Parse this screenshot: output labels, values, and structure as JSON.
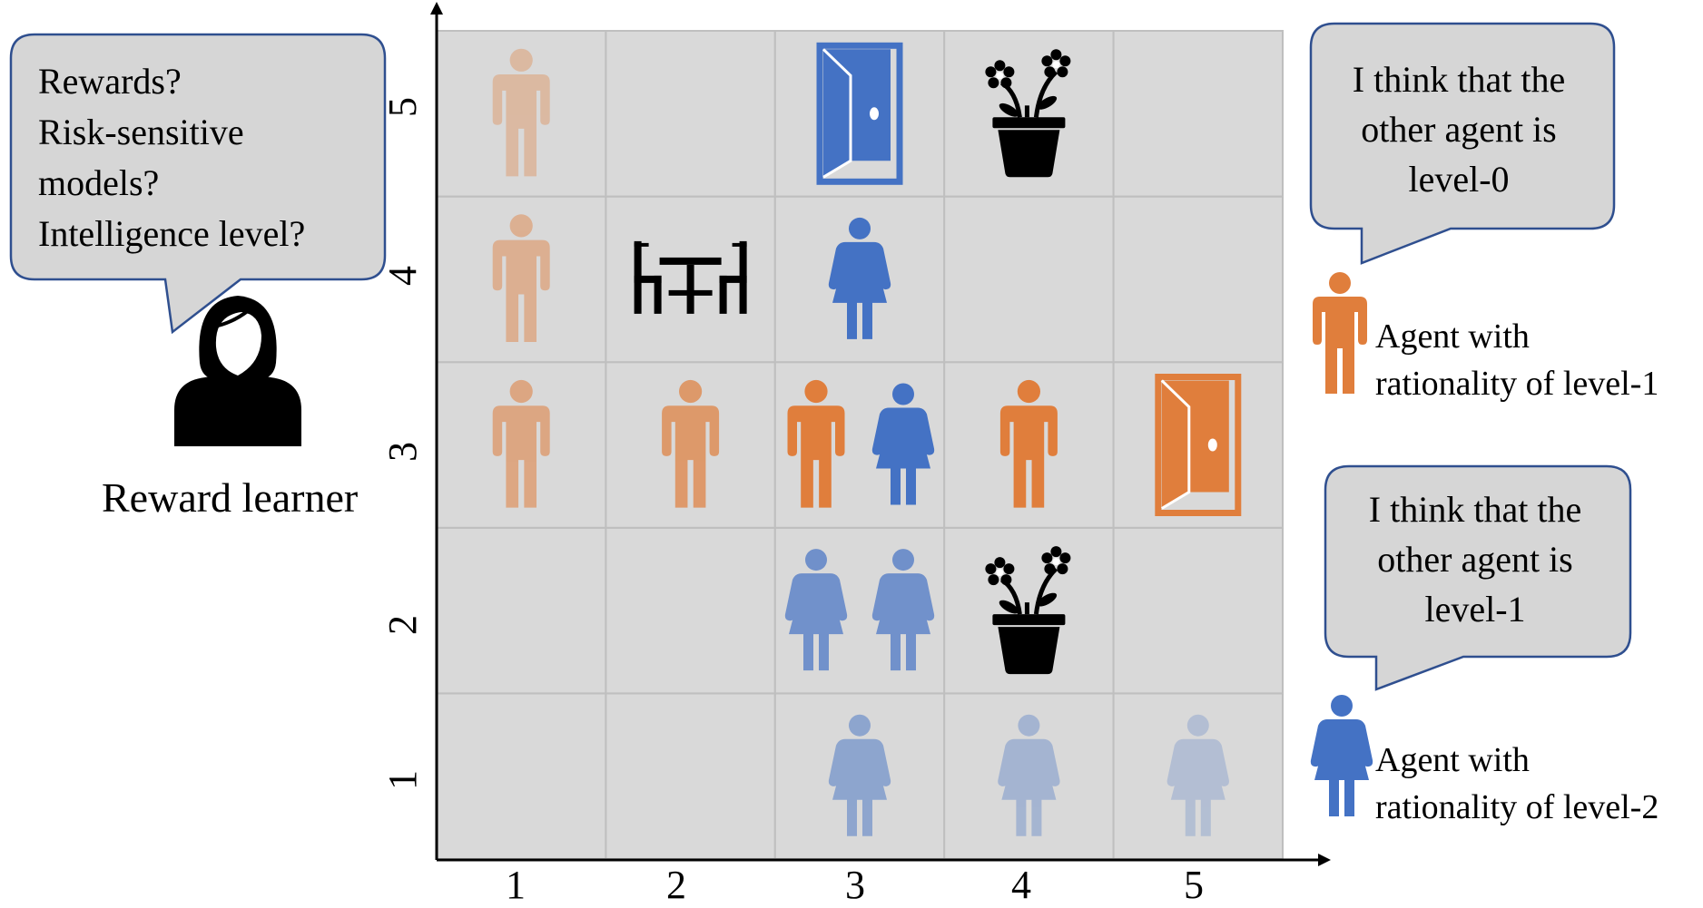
{
  "learner": {
    "question_lines": [
      "Rewards?",
      "Risk-sensitive",
      "models?",
      "Intelligence level?"
    ],
    "label": "Reward learner"
  },
  "level1_agent": {
    "thought_lines": [
      "I think that the",
      "other agent is",
      "level-0"
    ],
    "legend_lines": [
      "Agent with",
      "rationality of level-1"
    ]
  },
  "level2_agent": {
    "thought_lines": [
      "I think that the",
      "other agent is",
      "level-1"
    ],
    "legend_lines": [
      "Agent with",
      "rationality of level-2"
    ]
  },
  "axes": {
    "x_ticks": [
      "1",
      "2",
      "3",
      "4",
      "5"
    ],
    "y_ticks": [
      "1",
      "2",
      "3",
      "4",
      "5"
    ]
  },
  "grid": {
    "columns": 5,
    "rows": 5,
    "cells": [
      {
        "col": 1,
        "row": 5,
        "items": [
          {
            "type": "man",
            "agent": "level-1",
            "opacity": 0.35
          }
        ]
      },
      {
        "col": 3,
        "row": 5,
        "items": [
          {
            "type": "door",
            "agent": "level-2"
          }
        ]
      },
      {
        "col": 4,
        "row": 5,
        "items": [
          {
            "type": "flower-pot"
          }
        ]
      },
      {
        "col": 1,
        "row": 4,
        "items": [
          {
            "type": "man",
            "agent": "level-1",
            "opacity": 0.45
          }
        ]
      },
      {
        "col": 2,
        "row": 4,
        "items": [
          {
            "type": "table-chairs"
          }
        ]
      },
      {
        "col": 3,
        "row": 4,
        "items": [
          {
            "type": "woman",
            "agent": "level-2",
            "opacity": 1.0
          }
        ]
      },
      {
        "col": 1,
        "row": 3,
        "items": [
          {
            "type": "man",
            "agent": "level-1",
            "opacity": 0.55
          }
        ]
      },
      {
        "col": 2,
        "row": 3,
        "items": [
          {
            "type": "man",
            "agent": "level-1",
            "opacity": 0.7
          }
        ]
      },
      {
        "col": 3,
        "row": 3,
        "items": [
          {
            "type": "man",
            "agent": "level-1",
            "opacity": 1.0
          },
          {
            "type": "woman",
            "agent": "level-2",
            "opacity": 1.0
          }
        ]
      },
      {
        "col": 4,
        "row": 3,
        "items": [
          {
            "type": "man",
            "agent": "level-1",
            "opacity": 1.0
          }
        ]
      },
      {
        "col": 5,
        "row": 3,
        "items": [
          {
            "type": "door",
            "agent": "level-1"
          }
        ]
      },
      {
        "col": 3,
        "row": 2,
        "items": [
          {
            "type": "woman",
            "agent": "level-2",
            "opacity": 0.7
          },
          {
            "type": "woman",
            "agent": "level-2",
            "opacity": 0.7
          }
        ]
      },
      {
        "col": 4,
        "row": 2,
        "items": [
          {
            "type": "flower-pot"
          }
        ]
      },
      {
        "col": 3,
        "row": 1,
        "items": [
          {
            "type": "woman",
            "agent": "level-2",
            "opacity": 0.5
          }
        ]
      },
      {
        "col": 4,
        "row": 1,
        "items": [
          {
            "type": "woman",
            "agent": "level-2",
            "opacity": 0.35
          }
        ]
      },
      {
        "col": 5,
        "row": 1,
        "items": [
          {
            "type": "woman",
            "agent": "level-2",
            "opacity": 0.25
          }
        ]
      }
    ]
  },
  "colors": {
    "level-1": "#E07E3C",
    "level-2": "#4472C4",
    "cell": "#D9D9D9",
    "cell_border": "#BFBFBF",
    "bubble_fill": "#D6D6D6",
    "bubble_stroke": "#2F4F8F",
    "icon_black": "#000000"
  }
}
